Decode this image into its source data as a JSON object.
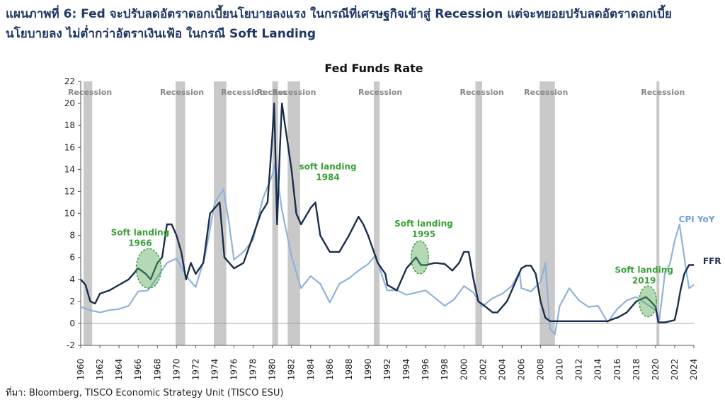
{
  "heading": {
    "line1": "แผนภาพที่ 6: Fed จะปรับลดอัตราดอกเบี้ยนโยบายลงแรง ในกรณีที่เศรษฐกิจเข้าสู่ Recession แต่จะทยอยปรับลดอัตราดอกเบี้ย",
    "line2": "นโยบายลง ไม่ต่ำกว่าอัตราเงินเฟ้อ ในกรณี Soft Landing"
  },
  "source": "ที่มา: Bloomberg, TISCO Economic Strategy Unit (TISCO ESU)",
  "chart_data": {
    "type": "line",
    "title": "Fed Funds Rate",
    "xlim": [
      1960,
      2024
    ],
    "ylim": [
      -2,
      22
    ],
    "x_ticks": [
      "1960",
      "1962",
      "1964",
      "1966",
      "1968",
      "1970",
      "1972",
      "1974",
      "1976",
      "1978",
      "1980",
      "1982",
      "1984",
      "1986",
      "1988",
      "1990",
      "1992",
      "1994",
      "1996",
      "1998",
      "2000",
      "2002",
      "2004",
      "2006",
      "2008",
      "2010",
      "2012",
      "2014",
      "2016",
      "2018",
      "2020",
      "2022",
      "2024"
    ],
    "y_ticks": [
      "-2",
      "0",
      "2",
      "4",
      "6",
      "8",
      "10",
      "12",
      "14",
      "16",
      "18",
      "20",
      "22"
    ],
    "colors": {
      "ffr": "#1a2e4c",
      "cpi": "#8fb3dc",
      "recession": "#c9c9c9",
      "annotation": "#3aa03a"
    },
    "recessions": [
      {
        "start": 1960.3,
        "end": 1961.2,
        "label": "Recession"
      },
      {
        "start": 1969.9,
        "end": 1970.9,
        "label": "Recession"
      },
      {
        "start": 1973.9,
        "end": 1975.2,
        "label": "Recession"
      },
      {
        "start": 1980.0,
        "end": 1980.6,
        "label": "Recession"
      },
      {
        "start": 1981.6,
        "end": 1982.9,
        "label": "Recession"
      },
      {
        "start": 1990.6,
        "end": 1991.2,
        "label": "Recession"
      },
      {
        "start": 2001.2,
        "end": 2001.9,
        "label": "Recession"
      },
      {
        "start": 2007.9,
        "end": 2009.5,
        "label": "Recession"
      },
      {
        "start": 2020.1,
        "end": 2020.4,
        "label": "Recession"
      }
    ],
    "series": [
      {
        "name": "FFR",
        "x": [
          1960,
          1960.5,
          1961,
          1961.5,
          1962,
          1963,
          1964,
          1965,
          1966,
          1966.8,
          1967.3,
          1968,
          1968.5,
          1969,
          1969.5,
          1970,
          1970.5,
          1971,
          1971.5,
          1972,
          1972.8,
          1973.5,
          1974.5,
          1975,
          1976,
          1977,
          1978,
          1978.8,
          1979.5,
          1980,
          1980.2,
          1980.5,
          1980.8,
          1981,
          1981.5,
          1982,
          1982.5,
          1983,
          1984,
          1984.5,
          1985,
          1986,
          1987,
          1988,
          1989,
          1989.5,
          1990,
          1991,
          1991.8,
          1992,
          1993,
          1994,
          1995,
          1995.5,
          1996,
          1997,
          1998,
          1998.8,
          1999.5,
          2000,
          2000.5,
          2001,
          2001.5,
          2002,
          2003,
          2003.5,
          2004,
          2004.5,
          2005,
          2006,
          2006.5,
          2007,
          2007.5,
          2008,
          2008.5,
          2009,
          2010,
          2012,
          2014,
          2015,
          2015.9,
          2016,
          2017,
          2018,
          2019,
          2019.5,
          2020,
          2020.3,
          2021,
          2022,
          2022.3,
          2022.6,
          2023,
          2023.5,
          2024
        ],
        "y": [
          4.0,
          3.5,
          2.0,
          1.8,
          2.7,
          3.0,
          3.5,
          4.0,
          5.0,
          4.5,
          4.0,
          5.5,
          6.0,
          9.0,
          9.0,
          8.0,
          6.5,
          4.0,
          5.5,
          4.5,
          5.5,
          10.0,
          11.0,
          6.0,
          5.0,
          5.5,
          8.0,
          10.0,
          11.0,
          17.0,
          20.0,
          9.0,
          16.0,
          20.0,
          17.0,
          14.0,
          10.0,
          9.0,
          10.5,
          11.0,
          8.0,
          6.5,
          6.5,
          8.0,
          9.7,
          9.0,
          8.0,
          5.5,
          4.5,
          3.5,
          3.0,
          5.0,
          6.0,
          5.3,
          5.3,
          5.5,
          5.4,
          4.8,
          5.5,
          6.5,
          6.5,
          4.0,
          2.0,
          1.7,
          1.0,
          1.0,
          1.5,
          2.0,
          3.0,
          5.0,
          5.25,
          5.25,
          4.5,
          2.0,
          0.5,
          0.2,
          0.2,
          0.2,
          0.2,
          0.2,
          0.5,
          0.5,
          1.0,
          2.0,
          2.4,
          2.0,
          1.5,
          0.1,
          0.1,
          0.3,
          1.5,
          3.0,
          4.5,
          5.3,
          5.3
        ]
      },
      {
        "name": "CPI YoY",
        "x": [
          1960,
          1961,
          1962,
          1963,
          1964,
          1965,
          1966,
          1967,
          1968,
          1969,
          1970,
          1971,
          1972,
          1973,
          1974,
          1974.9,
          1975.5,
          1976,
          1977,
          1978,
          1979,
          1980,
          1980.3,
          1981,
          1982,
          1983,
          1984,
          1985,
          1986,
          1987,
          1988,
          1989,
          1990,
          1990.8,
          1991.5,
          1992,
          1993,
          1994,
          1995,
          1996,
          1997,
          1998,
          1999,
          2000,
          2001,
          2001.8,
          2002,
          2003,
          2004,
          2005,
          2005.8,
          2006,
          2007,
          2008,
          2008.5,
          2009,
          2009.5,
          2010,
          2011,
          2012,
          2013,
          2014,
          2015,
          2016,
          2017,
          2018,
          2019,
          2020,
          2020.4,
          2021,
          2021.5,
          2022,
          2022.5,
          2023,
          2023.5,
          2024
        ],
        "y": [
          1.5,
          1.2,
          1.0,
          1.2,
          1.3,
          1.6,
          2.9,
          3.0,
          4.2,
          5.5,
          5.9,
          4.3,
          3.3,
          6.2,
          11.0,
          12.2,
          9.0,
          5.8,
          6.5,
          7.6,
          11.3,
          13.5,
          14.6,
          10.3,
          6.1,
          3.2,
          4.3,
          3.6,
          1.9,
          3.6,
          4.1,
          4.8,
          5.4,
          6.2,
          4.2,
          3.0,
          3.0,
          2.6,
          2.8,
          3.0,
          2.3,
          1.6,
          2.2,
          3.4,
          2.8,
          1.6,
          1.6,
          2.3,
          2.7,
          3.4,
          4.7,
          3.2,
          2.9,
          3.8,
          5.5,
          -0.5,
          -1.0,
          1.6,
          3.2,
          2.1,
          1.5,
          1.6,
          0.1,
          1.3,
          2.1,
          2.4,
          1.8,
          1.2,
          0.3,
          4.7,
          5.4,
          7.5,
          9.0,
          6.0,
          3.2,
          3.5
        ]
      }
    ],
    "annotations": [
      {
        "label1": "Soft landing",
        "label2": "1966",
        "cx": 1967.1,
        "cy": 5.0,
        "rx": 1.3,
        "ry": 1.8,
        "tx": 1966.2,
        "ty": 8.0
      },
      {
        "label1": "soft landing",
        "label2": "1984",
        "cx": 1984,
        "cy": 10.8,
        "rx": 0,
        "ry": 0,
        "tx": 1985.8,
        "ty": 14.0
      },
      {
        "label1": "Soft landing",
        "label2": "1995",
        "cx": 1995.4,
        "cy": 6.0,
        "rx": 0.9,
        "ry": 1.5,
        "tx": 1995.8,
        "ty": 8.8
      },
      {
        "label1": "Soft landing",
        "label2": "2019",
        "cx": 2019.2,
        "cy": 2.0,
        "rx": 0.9,
        "ry": 1.4,
        "tx": 2018.8,
        "ty": 4.6
      }
    ],
    "series_labels": [
      {
        "text": "CPI YoY",
        "x": 2024.3,
        "y": 9.2,
        "color": "#6fa0d6"
      },
      {
        "text": "FFR",
        "x": 2025.9,
        "y": 5.4,
        "color": "#1a2e4c"
      }
    ]
  }
}
